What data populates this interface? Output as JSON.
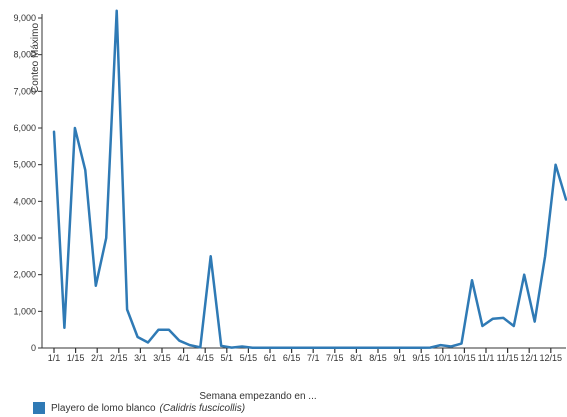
{
  "chart_data": {
    "type": "line",
    "title": "",
    "xlabel": "Semana empezando en ...",
    "ylabel": "Conteo Máximo",
    "ylim": [
      0,
      9000
    ],
    "y_ticks": [
      0,
      1000,
      2000,
      3000,
      4000,
      5000,
      6000,
      7000,
      8000,
      9000
    ],
    "y_tick_labels": [
      "0",
      "1,000",
      "2,000",
      "3,000",
      "4,000",
      "5,000",
      "6,000",
      "7,000",
      "8,000",
      "9,000"
    ],
    "x_tick_labels": [
      "1/1",
      "1/15",
      "2/1",
      "2/15",
      "3/1",
      "3/15",
      "4/1",
      "4/15",
      "5/1",
      "5/15",
      "6/1",
      "6/15",
      "7/1",
      "7/15",
      "8/1",
      "8/15",
      "9/1",
      "9/15",
      "10/1",
      "10/15",
      "11/1",
      "11/15",
      "12/1",
      "12/15"
    ],
    "grid": false,
    "legend_position": "bottom-left",
    "color": "#2f7ab5",
    "series": [
      {
        "name": "Playero de lomo blanco",
        "scientific_name": "(Calidris fuscicollis)",
        "values": [
          5900,
          550,
          6000,
          4850,
          1700,
          3000,
          9200,
          1050,
          300,
          150,
          500,
          500,
          200,
          80,
          20,
          2500,
          60,
          10,
          40,
          5,
          5,
          5,
          5,
          5,
          5,
          5,
          5,
          5,
          5,
          5,
          5,
          5,
          5,
          5,
          5,
          5,
          10,
          80,
          40,
          120,
          1850,
          600,
          800,
          820,
          600,
          2000,
          720,
          2500,
          5000,
          4050
        ]
      }
    ]
  },
  "legend": {
    "common_name": "Playero de lomo blanco",
    "scientific_name": "(Calidris fuscicollis)"
  }
}
